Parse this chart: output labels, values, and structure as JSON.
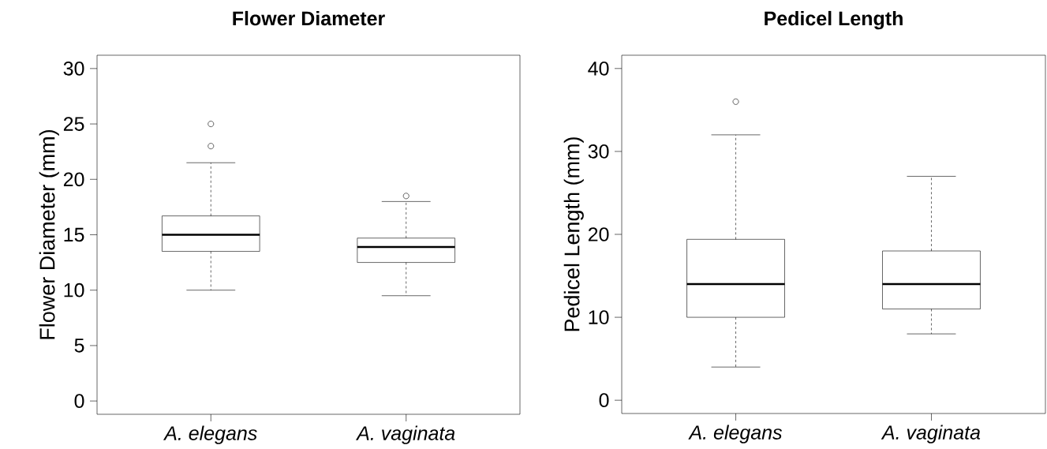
{
  "chart_data": [
    {
      "type": "box",
      "title": "Flower Diameter",
      "ylabel": "Flower Diameter (mm)",
      "categories": [
        "*A. elegans*",
        "*A. vaginata*"
      ],
      "boxes": [
        {
          "low": 10,
          "q1": 13.5,
          "median": 15,
          "q3": 16.7,
          "high": 21.5,
          "outliers": [
            23,
            25
          ]
        },
        {
          "low": 9.5,
          "q1": 12.5,
          "median": 13.9,
          "q3": 14.7,
          "high": 18,
          "outliers": [
            18.5
          ]
        }
      ],
      "ylim": [
        -1.2,
        31.2
      ],
      "yticks": [
        0,
        5,
        10,
        15,
        20,
        25,
        30
      ]
    },
    {
      "type": "box",
      "title": "Pedicel Length",
      "ylabel": "Pedicel Length (mm)",
      "categories": [
        "*A. elegans*",
        "*A. vaginata*"
      ],
      "boxes": [
        {
          "low": 4,
          "q1": 10,
          "median": 14,
          "q3": 19.4,
          "high": 32,
          "outliers": [
            36
          ]
        },
        {
          "low": 8,
          "q1": 11,
          "median": 14,
          "q3": 18,
          "high": 27
        }
      ],
      "ylim": [
        -1.6,
        41.6
      ],
      "yticks": [
        0,
        10,
        20,
        30,
        40
      ]
    }
  ]
}
